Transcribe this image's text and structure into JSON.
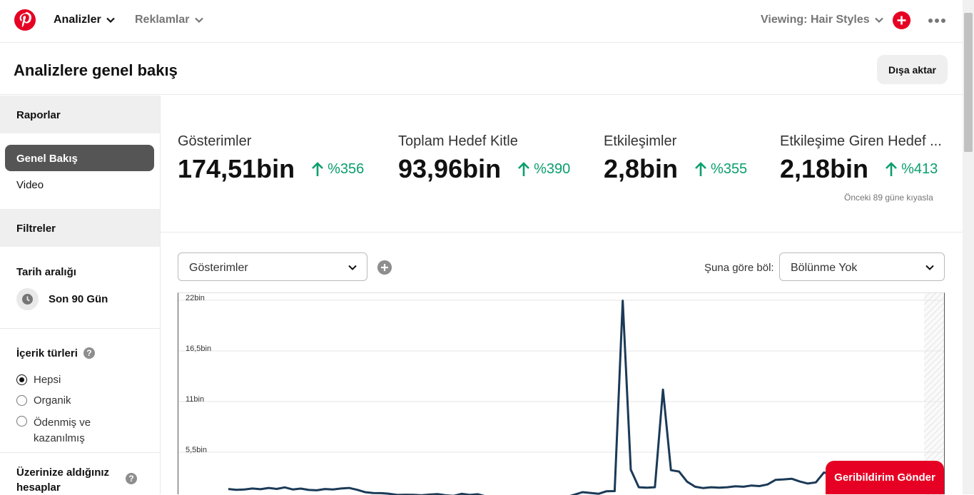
{
  "topbar": {
    "nav_analytics": "Analizler",
    "nav_ads": "Reklamlar",
    "viewing": "Viewing: Hair Styles"
  },
  "page": {
    "title": "Analizlere genel bakış",
    "export_label": "Dışa aktar"
  },
  "sidebar": {
    "reports_header": "Raporlar",
    "items": [
      {
        "label": "Genel Bakış",
        "active": true
      },
      {
        "label": "Video",
        "active": false
      }
    ],
    "filters_header": "Filtreler",
    "date_range_label": "Tarih aralığı",
    "date_range_value": "Son 90 Gün",
    "content_types_label": "İçerik türleri",
    "content_types": [
      {
        "label": "Hepsi",
        "checked": true
      },
      {
        "label": "Organik",
        "checked": false
      },
      {
        "label": "Ödenmiş ve kazanılmış",
        "checked": false
      }
    ],
    "claimed_accounts_label": "Üzerinize aldığınız hesaplar"
  },
  "metrics": [
    {
      "label": "Gösterimler",
      "value": "174,51bin",
      "change": "%356"
    },
    {
      "label": "Toplam Hedef Kitle",
      "value": "93,96bin",
      "change": "%390"
    },
    {
      "label": "Etkileşimler",
      "value": "2,8bin",
      "change": "%355"
    },
    {
      "label": "Etkileşime Giren Hedef ...",
      "value": "2,18bin",
      "change": "%413"
    }
  ],
  "compare_note": "Önceki 89 güne kıyasla",
  "controls": {
    "metric_select": "Gösterimler",
    "split_label": "Şuna göre böl:",
    "split_select": "Bölünme Yok"
  },
  "chart_data": {
    "type": "line",
    "series": [
      {
        "values": [
          1500,
          1420,
          1450,
          1560,
          1480,
          1620,
          1510,
          1680,
          1460,
          1550,
          1400,
          1360,
          1500,
          1460,
          1560,
          1620,
          1420,
          1160,
          1070,
          1050,
          980,
          860,
          880,
          870,
          820,
          900,
          950,
          820,
          760,
          980,
          860,
          940,
          700,
          220,
          300,
          400,
          380,
          480,
          520,
          460,
          470,
          520,
          620,
          880,
          1160,
          1080,
          980,
          1260,
          1280,
          21950,
          3600,
          1700,
          1650,
          1700,
          12300,
          3550,
          3400,
          2300,
          1750,
          1600,
          1700,
          1640,
          1700,
          1800,
          1750,
          1880,
          1820,
          2000,
          2500,
          2550,
          2620,
          2320,
          2100,
          2220,
          3300,
          3050,
          3250,
          2150,
          2200,
          2160,
          2120,
          1950,
          1850,
          1700,
          1600,
          1400,
          1350
        ]
      }
    ],
    "ytick_labels": [
      "22bin",
      "16,5bin",
      "11bin",
      "5,5bin"
    ],
    "yticks": [
      22000,
      16500,
      11000,
      5500
    ],
    "ylim": [
      0,
      22500
    ],
    "color": "#1b3a57"
  },
  "feedback_label": "Geribildirim Gönder",
  "colors": {
    "brand_red": "#e60023",
    "positive_green": "#0a9f6b",
    "line": "#1b3a57"
  }
}
